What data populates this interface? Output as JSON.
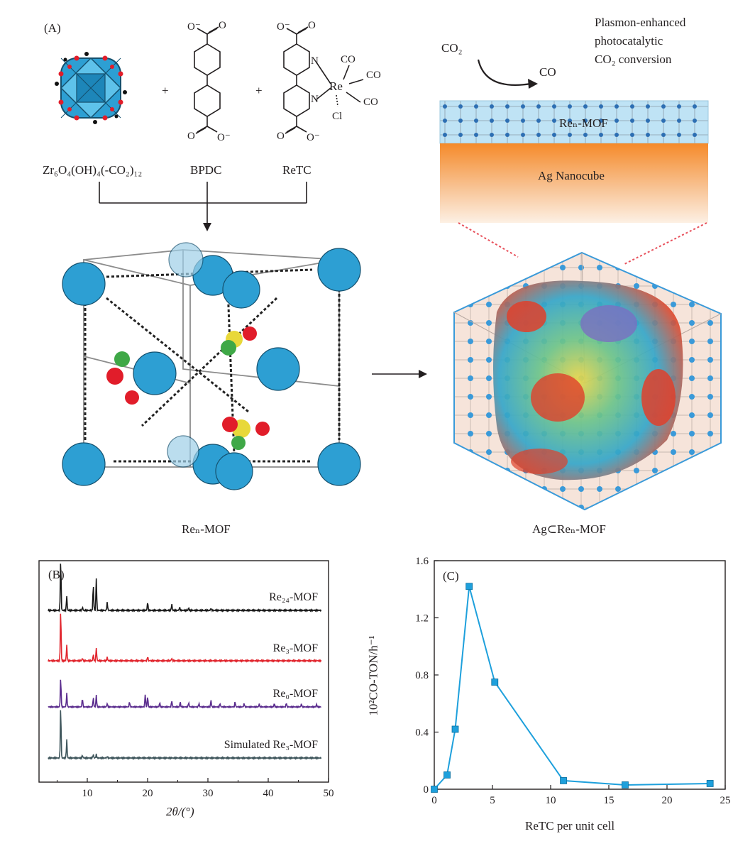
{
  "panelA": {
    "label": "(A)",
    "cluster_label": "Zr₆O₄(OH)₄(-CO₂)₁₂",
    "bpdc_label": "BPDC",
    "retc_label": "ReTC",
    "plus1": "+",
    "plus2": "+",
    "ren_mof_label": "Reₙ-MOF",
    "ag_ren_mof_label": "Ag⊂Reₙ-MOF",
    "co2_label": "CO₂",
    "co_label": "CO",
    "conversion_text": [
      "Plasmon-enhanced",
      "photocatalytic",
      "CO₂ conversion"
    ],
    "film_label": "Reₙ-MOF",
    "nanocube_label": "Ag Nanocube",
    "chem_labels": {
      "o_minus": "O⁻",
      "o": "O",
      "n": "N",
      "re": "Re",
      "co": "CO",
      "cl": "Cl"
    }
  },
  "chart_data": [
    {
      "type": "line",
      "panel_label": "(B)",
      "xlabel": "2θ/(°)",
      "ylabel": "",
      "xlim": [
        2,
        50
      ],
      "x_ticks": [
        10,
        20,
        30,
        40,
        50
      ],
      "series": [
        {
          "name": "Re₂₄-MOF",
          "color": "#1a1a1a",
          "peaks": [
            [
              5.6,
              1.0
            ],
            [
              6.6,
              0.28
            ],
            [
              9.2,
              0.06
            ],
            [
              11.0,
              0.5
            ],
            [
              11.5,
              0.62
            ],
            [
              13.3,
              0.15
            ],
            [
              20.0,
              0.16
            ],
            [
              24.0,
              0.12
            ],
            [
              25.3,
              0.06
            ],
            [
              26.8,
              0.05
            ],
            [
              30.5,
              0.04
            ]
          ]
        },
        {
          "name": "Re₃-MOF",
          "color": "#e1262e",
          "peaks": [
            [
              5.6,
              1.0
            ],
            [
              6.6,
              0.3
            ],
            [
              9.2,
              0.05
            ],
            [
              11.0,
              0.12
            ],
            [
              11.5,
              0.25
            ],
            [
              13.3,
              0.07
            ],
            [
              20.0,
              0.08
            ],
            [
              24.0,
              0.05
            ]
          ]
        },
        {
          "name": "Re₀-MOF",
          "color": "#5b2d8e",
          "peaks": [
            [
              5.6,
              0.7
            ],
            [
              6.6,
              0.32
            ],
            [
              9.2,
              0.2
            ],
            [
              11.0,
              0.22
            ],
            [
              11.5,
              0.28
            ],
            [
              13.3,
              0.08
            ],
            [
              17.0,
              0.12
            ],
            [
              19.6,
              0.3
            ],
            [
              20.0,
              0.25
            ],
            [
              22.0,
              0.1
            ],
            [
              24.0,
              0.15
            ],
            [
              25.4,
              0.12
            ],
            [
              26.8,
              0.1
            ],
            [
              28.5,
              0.08
            ],
            [
              30.5,
              0.16
            ],
            [
              32.0,
              0.08
            ],
            [
              34.5,
              0.12
            ],
            [
              36.0,
              0.08
            ],
            [
              38.5,
              0.07
            ],
            [
              41.0,
              0.08
            ],
            [
              43.0,
              0.09
            ],
            [
              45.5,
              0.07
            ],
            [
              48.0,
              0.06
            ]
          ]
        },
        {
          "name": "Simulated Re₃-MOF",
          "color": "#3f565c",
          "peaks": [
            [
              5.6,
              1.0
            ],
            [
              6.6,
              0.35
            ],
            [
              9.2,
              0.05
            ],
            [
              11.0,
              0.07
            ],
            [
              11.5,
              0.07
            ],
            [
              13.3,
              0.03
            ]
          ]
        }
      ]
    },
    {
      "type": "line",
      "panel_label": "(C)",
      "xlabel": "ReTC per unit cell",
      "ylabel": "10²CO-TON/h⁻¹",
      "xlim": [
        0,
        25
      ],
      "ylim": [
        0,
        1.6
      ],
      "x_ticks": [
        0,
        5,
        10,
        15,
        20,
        25
      ],
      "y_ticks": [
        0,
        0.4,
        0.8,
        1.2,
        1.6
      ],
      "color": "#1ea0dc",
      "x": [
        0,
        1.1,
        1.8,
        3.0,
        5.2,
        11.1,
        16.4,
        23.7
      ],
      "y": [
        0.0,
        0.1,
        0.42,
        1.42,
        0.75,
        0.06,
        0.03,
        0.04
      ]
    }
  ]
}
